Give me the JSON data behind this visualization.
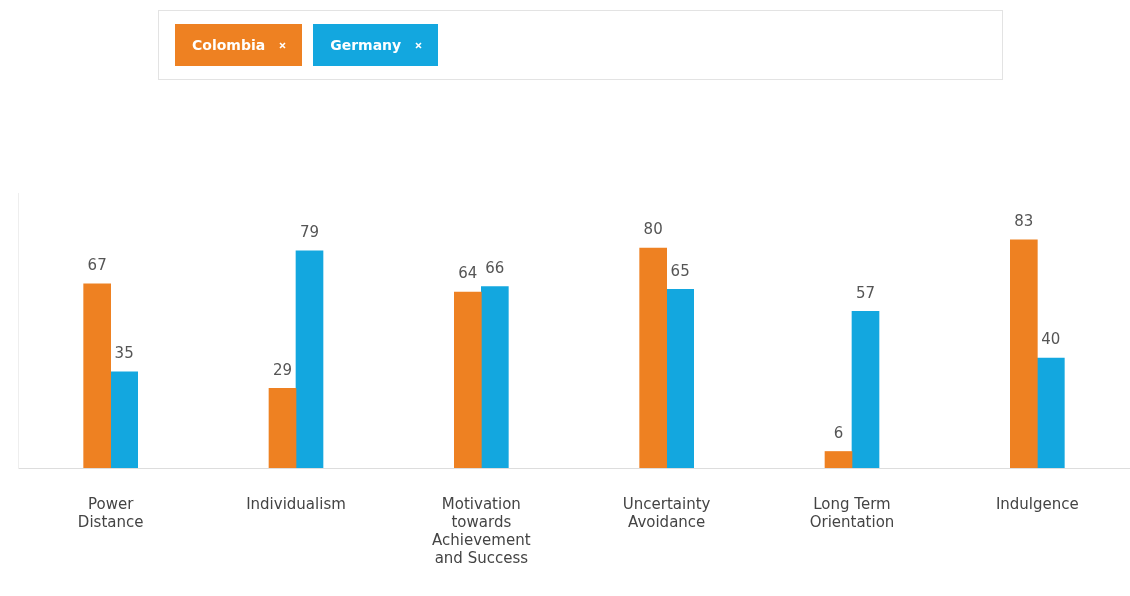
{
  "chart_data": {
    "type": "bar",
    "categories": [
      "Power Distance",
      "Individualism",
      "Motivation towards Achievement and Success",
      "Uncertainty Avoidance",
      "Long Term Orientation",
      "Indulgence"
    ],
    "series": [
      {
        "name": "Colombia",
        "color": "#ee8122",
        "values": [
          67,
          29,
          64,
          80,
          6,
          83
        ]
      },
      {
        "name": "Germany",
        "color": "#13a7df",
        "values": [
          35,
          79,
          66,
          65,
          57,
          40
        ]
      }
    ],
    "ylim": [
      0,
      100
    ],
    "data_labels": true,
    "grid": false,
    "legend": "top"
  }
}
